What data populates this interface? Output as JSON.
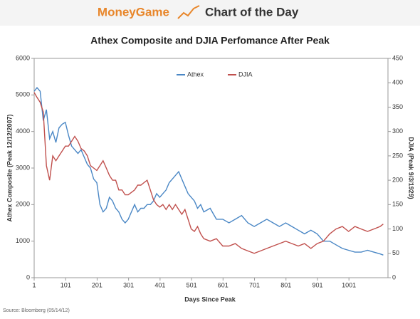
{
  "chart_data": {
    "type": "line",
    "brand": "MoneyGame",
    "banner": "Chart of the Day",
    "title": "Athex Composite and DJIA Perfomance After Peak",
    "xlabel": "Days Since Peak",
    "ylabel": "Athex Composite (Peak 12/12/2007)",
    "y2label": "DJIA (Peak 9/3/1929)",
    "source": "Source: Bloomberg (05/14/12)",
    "legend": "top",
    "grid": false,
    "xlim": [
      1,
      1125
    ],
    "xticks": [
      1,
      101,
      201,
      301,
      401,
      501,
      601,
      701,
      801,
      901,
      1001
    ],
    "ylim": [
      0,
      6000
    ],
    "yticks": [
      0,
      1000,
      2000,
      3000,
      4000,
      5000,
      6000
    ],
    "y2lim": [
      0,
      450
    ],
    "y2ticks": [
      0,
      50,
      100,
      150,
      200,
      250,
      300,
      350,
      400,
      450
    ],
    "x": [
      1,
      10,
      20,
      30,
      40,
      50,
      60,
      70,
      80,
      90,
      100,
      110,
      120,
      130,
      140,
      150,
      160,
      170,
      180,
      190,
      200,
      210,
      220,
      230,
      240,
      250,
      260,
      270,
      280,
      290,
      300,
      310,
      320,
      330,
      340,
      350,
      360,
      370,
      380,
      390,
      400,
      410,
      420,
      430,
      440,
      450,
      460,
      470,
      480,
      490,
      500,
      510,
      520,
      530,
      540,
      560,
      580,
      600,
      620,
      640,
      660,
      680,
      700,
      720,
      740,
      760,
      780,
      800,
      820,
      840,
      860,
      880,
      900,
      920,
      940,
      960,
      980,
      1000,
      1020,
      1040,
      1060,
      1080,
      1100,
      1110
    ],
    "series": [
      {
        "name": "Athex",
        "color": "#4a87c5",
        "values": [
          5100,
          5200,
          5100,
          4300,
          4600,
          3800,
          4000,
          3700,
          4100,
          4200,
          4250,
          3900,
          3600,
          3500,
          3400,
          3500,
          3300,
          3100,
          3000,
          2700,
          2600,
          2000,
          1800,
          1900,
          2200,
          2100,
          1900,
          1800,
          1600,
          1500,
          1600,
          1800,
          2000,
          1800,
          1900,
          1900,
          2000,
          2000,
          2100,
          2300,
          2200,
          2300,
          2400,
          2600,
          2700,
          2800,
          2900,
          2700,
          2500,
          2300,
          2200,
          2100,
          1900,
          2000,
          1800,
          1900,
          1600,
          1600,
          1500,
          1600,
          1700,
          1500,
          1400,
          1500,
          1600,
          1500,
          1400,
          1500,
          1400,
          1300,
          1200,
          1300,
          1200,
          1000,
          1000,
          900,
          800,
          750,
          700,
          700,
          750,
          700,
          650,
          620
        ]
      },
      {
        "name": "DJIA",
        "color": "#c0504d",
        "axis": "y2",
        "values": [
          380,
          370,
          360,
          340,
          230,
          200,
          250,
          240,
          250,
          260,
          270,
          270,
          280,
          290,
          280,
          265,
          260,
          250,
          230,
          225,
          220,
          230,
          240,
          225,
          210,
          200,
          200,
          180,
          180,
          170,
          170,
          175,
          180,
          190,
          190,
          195,
          200,
          180,
          160,
          150,
          145,
          150,
          140,
          150,
          140,
          150,
          140,
          130,
          140,
          120,
          100,
          95,
          105,
          90,
          80,
          75,
          80,
          65,
          65,
          70,
          60,
          55,
          50,
          55,
          60,
          65,
          70,
          75,
          70,
          65,
          70,
          60,
          70,
          75,
          90,
          100,
          105,
          95,
          105,
          100,
          95,
          100,
          105,
          110
        ]
      }
    ]
  }
}
